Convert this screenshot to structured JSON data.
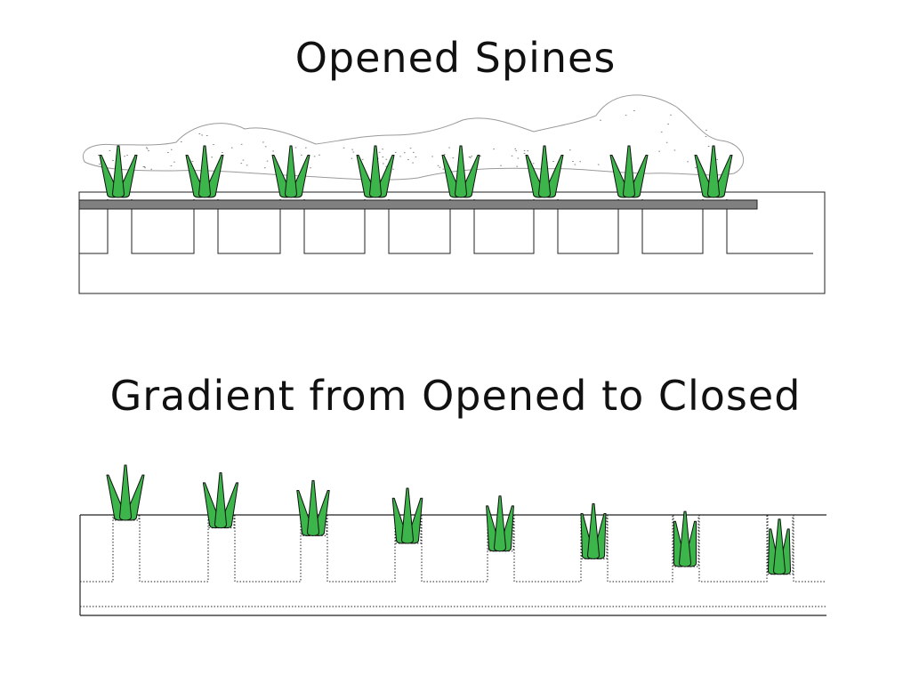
{
  "titles": {
    "top": "Opened Spines",
    "bottom": "Gradient from Opened to Closed"
  },
  "colors": {
    "spine_fill": "#3cb54a",
    "spine_stroke": "#111111",
    "bar_fill": "#808080",
    "cloud_stroke": "#9a9a9a",
    "line": "#222222"
  },
  "top_row": {
    "spine_count": 8,
    "state": "opened"
  },
  "bottom_row": {
    "spine_count": 8,
    "openness": [
      1.0,
      0.86,
      0.72,
      0.58,
      0.44,
      0.3,
      0.16,
      0.02
    ]
  }
}
